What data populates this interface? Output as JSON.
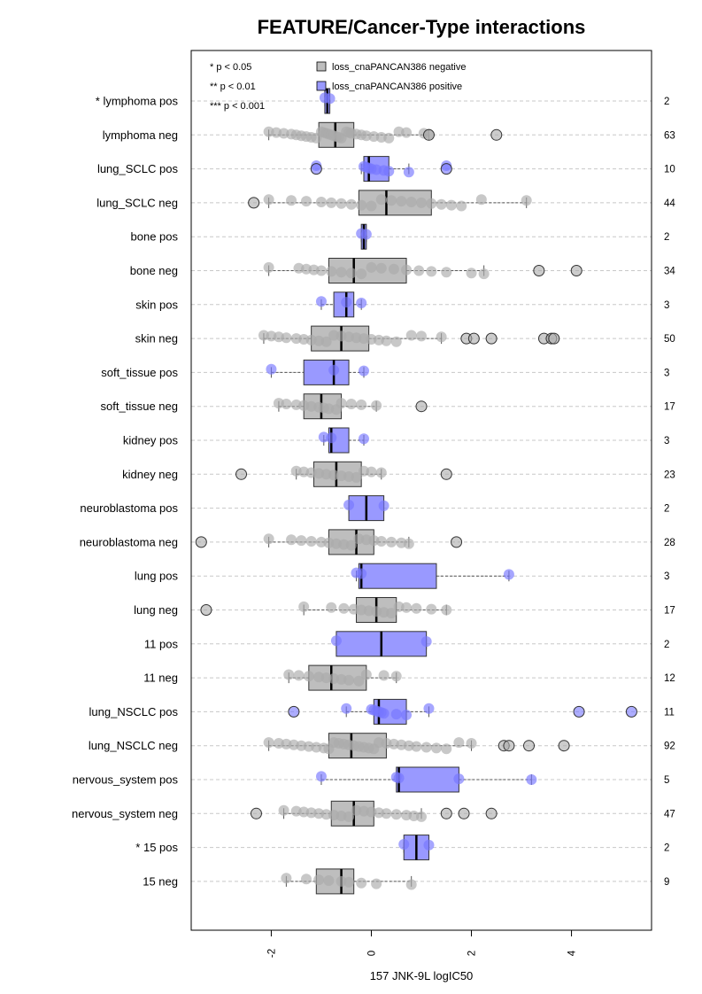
{
  "chart_data": {
    "type": "boxplot",
    "title": "FEATURE/Cancer-Type interactions",
    "xlabel": "157 JNK-9L logIC50",
    "xlim": [
      -3.6,
      5.6
    ],
    "x_ticks": [
      -2,
      0,
      2,
      4
    ],
    "grid": "horizontal dashed",
    "legend": {
      "position": "top-left",
      "significance": [
        "* p < 0.05",
        "** p < 0.01",
        "*** p < 0.001"
      ],
      "entries": [
        {
          "label": "loss_cnaPANCAN386 negative",
          "color": "#bebebe"
        },
        {
          "label": "loss_cnaPANCAN386 positive",
          "color": "#9999ff"
        }
      ]
    },
    "colors": {
      "negative_fill": "#bebebe",
      "positive_fill": "#9999ff",
      "negative_point": "#aaaaaa",
      "positive_point": "#7777ff"
    },
    "rows": [
      {
        "label": "* lymphoma pos",
        "group": "pos",
        "n": "2",
        "q1": -0.93,
        "median": -0.88,
        "q3": -0.83,
        "wlo": -0.93,
        "whi": -0.83,
        "points": [
          -0.93,
          -0.83
        ],
        "outliers": []
      },
      {
        "label": "lymphoma neg",
        "group": "neg",
        "n": "63",
        "q1": -1.05,
        "median": -0.72,
        "q3": -0.35,
        "wlo": -2.05,
        "whi": 1.15,
        "points": [
          -2.05,
          -1.9,
          -1.75,
          -1.6,
          -1.5,
          -1.4,
          -1.3,
          -1.2,
          -1.1,
          -1.0,
          -0.95,
          -0.9,
          -0.85,
          -0.8,
          -0.75,
          -0.7,
          -0.65,
          -0.6,
          -0.5,
          -0.45,
          -0.4,
          -0.3,
          -0.2,
          -0.1,
          0.05,
          0.2,
          0.35,
          0.55,
          0.7,
          1.05,
          1.15
        ],
        "outliers": [
          1.15,
          2.5
        ]
      },
      {
        "label": "lung_SCLC pos",
        "group": "pos",
        "n": "10",
        "q1": -0.15,
        "median": -0.05,
        "q3": 0.35,
        "wlo": -0.2,
        "whi": 0.75,
        "points": [
          -1.1,
          -0.15,
          -0.1,
          -0.05,
          0.0,
          0.1,
          0.25,
          0.35,
          0.75,
          1.5
        ],
        "outliers": [
          -1.1,
          1.5
        ]
      },
      {
        "label": "lung_SCLC neg",
        "group": "neg",
        "n": "44",
        "q1": -0.25,
        "median": 0.3,
        "q3": 1.2,
        "wlo": -2.05,
        "whi": 3.1,
        "points": [
          -2.05,
          -1.6,
          -1.3,
          -1.0,
          -0.8,
          -0.6,
          -0.4,
          -0.2,
          0.0,
          0.2,
          0.4,
          0.6,
          0.8,
          1.0,
          1.2,
          1.4,
          1.6,
          1.8,
          2.2,
          3.1
        ],
        "outliers": [
          -2.35
        ]
      },
      {
        "label": "bone pos",
        "group": "pos",
        "n": "2",
        "q1": -0.2,
        "median": -0.15,
        "q3": -0.1,
        "wlo": -0.2,
        "whi": -0.1,
        "points": [
          -0.2,
          -0.1
        ],
        "outliers": []
      },
      {
        "label": "bone neg",
        "group": "neg",
        "n": "34",
        "q1": -0.85,
        "median": -0.35,
        "q3": 0.7,
        "wlo": -2.05,
        "whi": 2.25,
        "points": [
          -2.05,
          -1.45,
          -1.3,
          -1.15,
          -1.0,
          -0.8,
          -0.6,
          -0.4,
          -0.2,
          0.0,
          0.2,
          0.45,
          0.7,
          0.95,
          1.2,
          1.5,
          2.0,
          2.25
        ],
        "outliers": [
          3.35,
          4.1
        ]
      },
      {
        "label": "skin pos",
        "group": "pos",
        "n": "3",
        "q1": -0.75,
        "median": -0.5,
        "q3": -0.35,
        "wlo": -1.0,
        "whi": -0.2,
        "points": [
          -1.0,
          -0.5,
          -0.2
        ],
        "outliers": []
      },
      {
        "label": "skin neg",
        "group": "neg",
        "n": "50",
        "q1": -1.2,
        "median": -0.6,
        "q3": -0.05,
        "wlo": -2.15,
        "whi": 1.4,
        "points": [
          -2.15,
          -2.0,
          -1.85,
          -1.7,
          -1.5,
          -1.35,
          -1.2,
          -1.05,
          -0.9,
          -0.75,
          -0.6,
          -0.45,
          -0.3,
          -0.15,
          0.0,
          0.15,
          0.3,
          0.5,
          0.8,
          1.0,
          1.4
        ],
        "outliers": [
          1.9,
          2.05,
          2.4,
          3.45,
          3.6,
          3.65
        ]
      },
      {
        "label": "soft_tissue pos",
        "group": "pos",
        "n": "3",
        "q1": -1.35,
        "median": -0.75,
        "q3": -0.45,
        "wlo": -2.0,
        "whi": -0.15,
        "points": [
          -2.0,
          -0.75,
          -0.15
        ],
        "outliers": []
      },
      {
        "label": "soft_tissue neg",
        "group": "neg",
        "n": "17",
        "q1": -1.35,
        "median": -1.0,
        "q3": -0.6,
        "wlo": -1.85,
        "whi": 0.1,
        "points": [
          -1.85,
          -1.7,
          -1.5,
          -1.35,
          -1.2,
          -1.05,
          -0.95,
          -0.85,
          -0.7,
          -0.6,
          -0.4,
          -0.2,
          0.1
        ],
        "outliers": [
          1.0
        ]
      },
      {
        "label": "kidney pos",
        "group": "pos",
        "n": "3",
        "q1": -0.85,
        "median": -0.8,
        "q3": -0.45,
        "wlo": -0.95,
        "whi": -0.15,
        "points": [
          -0.95,
          -0.8,
          -0.15
        ],
        "outliers": []
      },
      {
        "label": "kidney neg",
        "group": "neg",
        "n": "23",
        "q1": -1.15,
        "median": -0.7,
        "q3": -0.2,
        "wlo": -1.5,
        "whi": 0.2,
        "points": [
          -1.5,
          -1.35,
          -1.2,
          -1.05,
          -0.9,
          -0.75,
          -0.6,
          -0.45,
          -0.3,
          -0.15,
          0.0,
          0.2
        ],
        "outliers": [
          -2.6,
          1.5
        ]
      },
      {
        "label": "neuroblastoma pos",
        "group": "pos",
        "n": "2",
        "q1": -0.45,
        "median": -0.1,
        "q3": 0.25,
        "wlo": -0.45,
        "whi": 0.25,
        "points": [
          -0.45,
          0.25
        ],
        "outliers": []
      },
      {
        "label": "neuroblastoma neg",
        "group": "neg",
        "n": "28",
        "q1": -0.85,
        "median": -0.3,
        "q3": 0.05,
        "wlo": -2.05,
        "whi": 0.75,
        "points": [
          -2.05,
          -1.6,
          -1.4,
          -1.2,
          -1.0,
          -0.85,
          -0.7,
          -0.55,
          -0.4,
          -0.25,
          -0.1,
          0.05,
          0.2,
          0.4,
          0.6,
          0.75
        ],
        "outliers": [
          -3.4,
          1.7
        ]
      },
      {
        "label": "lung pos",
        "group": "pos",
        "n": "3",
        "q1": -0.25,
        "median": -0.2,
        "q3": 1.3,
        "wlo": -0.3,
        "whi": 2.75,
        "points": [
          -0.3,
          -0.2,
          2.75
        ],
        "outliers": []
      },
      {
        "label": "lung neg",
        "group": "neg",
        "n": "17",
        "q1": -0.3,
        "median": 0.1,
        "q3": 0.5,
        "wlo": -1.35,
        "whi": 1.5,
        "points": [
          -1.35,
          -0.8,
          -0.55,
          -0.35,
          -0.2,
          -0.05,
          0.1,
          0.25,
          0.4,
          0.55,
          0.7,
          0.9,
          1.2,
          1.5
        ],
        "outliers": [
          -3.3
        ]
      },
      {
        "label": "11 pos",
        "group": "pos",
        "n": "2",
        "q1": -0.7,
        "median": 0.2,
        "q3": 1.1,
        "wlo": -0.7,
        "whi": 1.1,
        "points": [
          -0.7,
          1.1
        ],
        "outliers": []
      },
      {
        "label": "11 neg",
        "group": "neg",
        "n": "12",
        "q1": -1.25,
        "median": -0.8,
        "q3": -0.1,
        "wlo": -1.65,
        "whi": 0.5,
        "points": [
          -1.65,
          -1.45,
          -1.25,
          -1.05,
          -0.9,
          -0.75,
          -0.6,
          -0.45,
          -0.25,
          -0.1,
          0.25,
          0.5
        ],
        "outliers": []
      },
      {
        "label": "lung_NSCLC pos",
        "group": "pos",
        "n": "11",
        "q1": 0.05,
        "median": 0.15,
        "q3": 0.7,
        "wlo": -0.5,
        "whi": 1.15,
        "points": [
          -0.5,
          0.0,
          0.05,
          0.1,
          0.15,
          0.2,
          0.25,
          0.5,
          0.7,
          1.15
        ],
        "outliers": [
          -1.55,
          4.15,
          5.2
        ]
      },
      {
        "label": "lung_NSCLC neg",
        "group": "neg",
        "n": "92",
        "q1": -0.85,
        "median": -0.4,
        "q3": 0.3,
        "wlo": -2.05,
        "whi": 2.0,
        "points": [
          -2.05,
          -1.85,
          -1.7,
          -1.55,
          -1.4,
          -1.25,
          -1.1,
          -0.95,
          -0.85,
          -0.75,
          -0.65,
          -0.55,
          -0.45,
          -0.35,
          -0.25,
          -0.15,
          -0.05,
          0.05,
          0.15,
          0.3,
          0.45,
          0.6,
          0.75,
          0.9,
          1.1,
          1.3,
          1.5,
          1.75,
          2.0
        ],
        "outliers": [
          2.65,
          2.75,
          3.15,
          3.85
        ]
      },
      {
        "label": "nervous_system pos",
        "group": "pos",
        "n": "5",
        "q1": 0.5,
        "median": 0.55,
        "q3": 1.75,
        "wlo": -1.0,
        "whi": 3.2,
        "points": [
          -1.0,
          0.5,
          0.55,
          1.75,
          3.2
        ],
        "outliers": []
      },
      {
        "label": "nervous_system neg",
        "group": "neg",
        "n": "47",
        "q1": -0.8,
        "median": -0.35,
        "q3": 0.05,
        "wlo": -1.75,
        "whi": 1.0,
        "points": [
          -1.75,
          -1.5,
          -1.35,
          -1.2,
          -1.05,
          -0.9,
          -0.75,
          -0.6,
          -0.45,
          -0.3,
          -0.15,
          0.0,
          0.15,
          0.3,
          0.5,
          0.7,
          0.85,
          1.0
        ],
        "outliers": [
          -2.3,
          1.5,
          1.85,
          2.4
        ]
      },
      {
        "label": "* 15 pos",
        "group": "pos",
        "n": "2",
        "q1": 0.65,
        "median": 0.9,
        "q3": 1.15,
        "wlo": 0.65,
        "whi": 1.15,
        "points": [
          0.65,
          1.15
        ],
        "outliers": []
      },
      {
        "label": "15 neg",
        "group": "neg",
        "n": "9",
        "q1": -1.1,
        "median": -0.6,
        "q3": -0.35,
        "wlo": -1.7,
        "whi": 0.8,
        "points": [
          -1.7,
          -1.3,
          -1.05,
          -0.85,
          -0.6,
          -0.45,
          -0.2,
          0.1,
          0.8
        ],
        "outliers": []
      }
    ]
  }
}
